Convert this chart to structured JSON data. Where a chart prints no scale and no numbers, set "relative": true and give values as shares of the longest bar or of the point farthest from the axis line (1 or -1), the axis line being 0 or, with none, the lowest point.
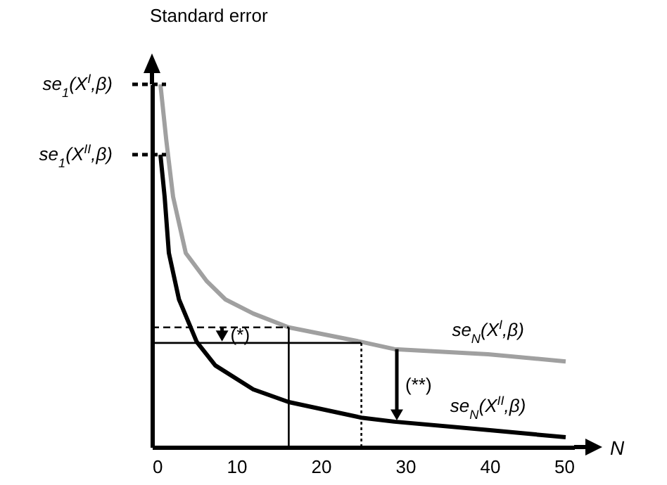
{
  "chart_data": {
    "type": "line",
    "ylabel": "Standard error",
    "xlabel": "N",
    "relative": true,
    "xlim": [
      0,
      50
    ],
    "xticks": [
      0,
      10,
      20,
      30,
      40,
      50
    ],
    "grid": false,
    "series": [
      {
        "name": "se$_{N}$(X$^{I}$,β)",
        "color": "#a0a0a0",
        "x": [
          1,
          1.7,
          2.5,
          4,
          6.5,
          8.7,
          12,
          16.2,
          24.8,
          28.7,
          39.8,
          49
        ],
        "values": [
          1,
          0.845,
          0.69,
          0.535,
          0.457,
          0.407,
          0.368,
          0.33,
          0.29,
          0.27,
          0.256,
          0.236
        ]
      },
      {
        "name": "se$_{N}$(X$^{II}$,β)",
        "color": "#000000",
        "x": [
          1,
          1.5,
          2,
          3.2,
          5.3,
          7.5,
          12,
          16.2,
          24.8,
          28.7,
          39.8,
          49
        ],
        "values": [
          0.806,
          0.69,
          0.535,
          0.407,
          0.29,
          0.225,
          0.159,
          0.124,
          0.081,
          0.07,
          0.047,
          0.027
        ]
      },
      {
        "color": "#000000",
        "line_style": "dashed",
        "x": [
          0,
          16.2
        ],
        "values": [
          0.33,
          0.33
        ]
      },
      {
        "color": "#000000",
        "line_style": "solid",
        "x": [
          0,
          24.8
        ],
        "values": [
          0.287,
          0.287
        ]
      },
      {
        "color": "#000000",
        "line_style": "solid",
        "x": [
          16.2,
          16.2
        ],
        "values": [
          0,
          0.33
        ]
      },
      {
        "color": "#000000",
        "line_style": "dotted",
        "x": [
          24.8,
          24.8
        ],
        "values": [
          0,
          0.287
        ]
      }
    ],
    "annotations": [
      "se$_{1}$(X$^{I}$,β)",
      "se$_{1}$(X$^{II}$,β)",
      {
        "text": "(*)",
        "x": 8.3,
        "y": 0.33
      },
      {
        "text": "(**)",
        "x": 29,
        "y": 0.27
      }
    ]
  }
}
